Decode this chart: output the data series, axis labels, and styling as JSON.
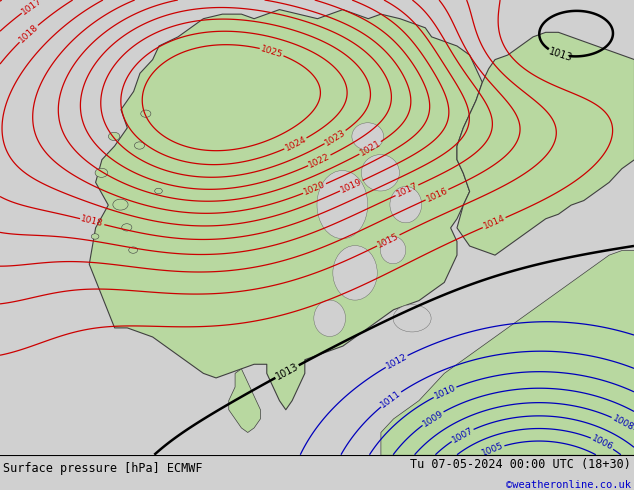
{
  "title_left": "Surface pressure [hPa] ECMWF",
  "title_right": "Tu 07-05-2024 00:00 UTC (18+30)",
  "watermark": "©weatheronline.co.uk",
  "ocean_color": "#d0d0d0",
  "land_color": "#b8d8a0",
  "land_color2": "#c8e4b0",
  "footer_bg": "#ffffff",
  "footer_text_color": "#000000",
  "watermark_color": "#0000cc",
  "red_color": "#cc0000",
  "blue_color": "#0000bb",
  "black_color": "#000000",
  "fig_width": 6.34,
  "fig_height": 4.9,
  "dpi": 100
}
